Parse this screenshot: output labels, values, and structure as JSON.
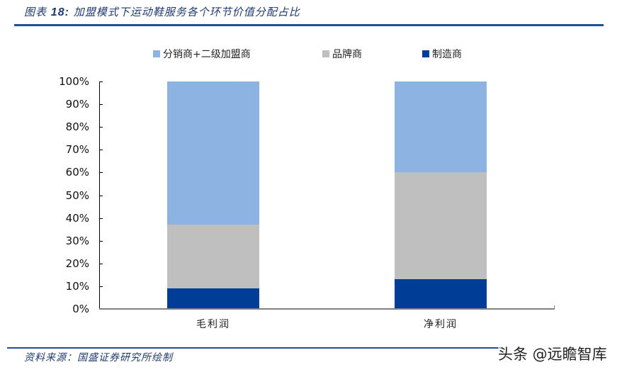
{
  "header": {
    "title_prefix": "图表",
    "title_number": "18:",
    "title_text": "加盟模式下运动鞋服务各个环节价值分配占比"
  },
  "footer": {
    "source": "资料来源：国盛证券研究所绘制",
    "watermark": "头条 @远瞻智库"
  },
  "colors": {
    "distributor": "#8db3e2",
    "brand": "#bfbfbf",
    "manufacturer": "#003d96",
    "title": "#1f3a6e",
    "rule": "#1f4e99"
  },
  "legend": [
    {
      "label": "分销商+二级加盟商",
      "color": "#8db3e2"
    },
    {
      "label": "品牌商",
      "color": "#bfbfbf"
    },
    {
      "label": "制造商",
      "color": "#003d96"
    }
  ],
  "y_ticks": [
    "0%",
    "10%",
    "20%",
    "30%",
    "40%",
    "50%",
    "60%",
    "70%",
    "80%",
    "90%",
    "100%"
  ],
  "chart_data": {
    "type": "bar",
    "stacked": true,
    "title": "加盟模式下运动鞋服务各个环节价值分配占比",
    "categories": [
      "毛利润",
      "净利润"
    ],
    "series": [
      {
        "name": "制造商",
        "values": [
          9,
          13
        ],
        "color": "#003d96"
      },
      {
        "name": "品牌商",
        "values": [
          28,
          47
        ],
        "color": "#bfbfbf"
      },
      {
        "name": "分销商+二级加盟商",
        "values": [
          63,
          40
        ],
        "color": "#8db3e2"
      }
    ],
    "xlabel": "",
    "ylabel": "",
    "ylim": [
      0,
      100
    ],
    "y_format": "percent",
    "y_tick_step": 10,
    "grid": false,
    "legend_position": "top"
  }
}
